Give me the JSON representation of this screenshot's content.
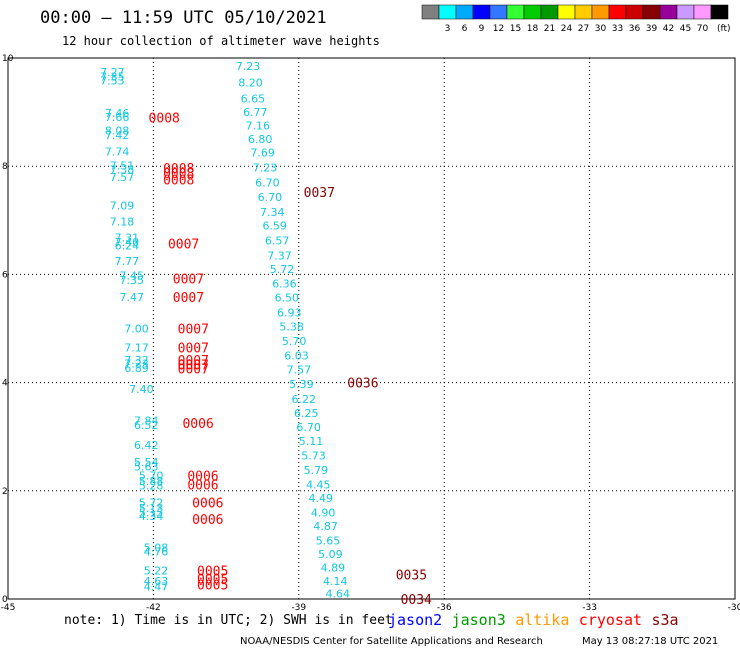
{
  "header": {
    "title": "00:00 – 11:59 UTC 05/10/2021",
    "subtitle": "12 hour collection of altimeter wave heights"
  },
  "colorbar": {
    "colors": [
      "#808080",
      "#00ffff",
      "#00aaff",
      "#0000ff",
      "#3377ff",
      "#33ff33",
      "#00cc00",
      "#009900",
      "#ffff00",
      "#ffcc00",
      "#ff9900",
      "#ff0000",
      "#cc0000",
      "#880000",
      "#990099",
      "#cc99ff",
      "#ff99ff",
      "#000000"
    ],
    "labels": [
      "3",
      "6",
      "9",
      "12",
      "15",
      "18",
      "21",
      "24",
      "27",
      "30",
      "33",
      "36",
      "39",
      "42",
      "45",
      "70"
    ],
    "unit": "(ft)"
  },
  "footer": {
    "note": "note: 1) Time is in UTC; 2) SWH is in feet",
    "satellites": [
      {
        "name": "jason2",
        "color": "#0000ff"
      },
      {
        "name": "jason3",
        "color": "#009900"
      },
      {
        "name": "altika",
        "color": "#ff9900"
      },
      {
        "name": "cryosat",
        "color": "#ff0000"
      },
      {
        "name": "s3a",
        "color": "#880000"
      }
    ],
    "credit": "NOAA/NESDIS Center for Satellite Applications and Research",
    "timestamp": "May 13 08:27:18 UTC 2021"
  },
  "chart_data": {
    "type": "scatter",
    "xlim": [
      -45,
      -30
    ],
    "ylim": [
      0,
      10
    ],
    "xticks": [
      "-45",
      "-42",
      "-39",
      "-36",
      "-33",
      "-30"
    ],
    "yticks": [
      "0",
      "2",
      "4",
      "6",
      "8",
      "10"
    ],
    "grid": true,
    "points": [
      {
        "x": -43.1,
        "y": 9.74,
        "label": "7.27",
        "color": "#11c8e0"
      },
      {
        "x": -43.1,
        "y": 9.66,
        "label": "7.35",
        "color": "#11c8e0"
      },
      {
        "x": -43.1,
        "y": 9.58,
        "label": "7.53",
        "color": "#11c8e0"
      },
      {
        "x": -43.0,
        "y": 8.98,
        "label": "7.46",
        "color": "#11c8e0"
      },
      {
        "x": -43.0,
        "y": 8.91,
        "label": "7.66",
        "color": "#11c8e0"
      },
      {
        "x": -43.0,
        "y": 8.66,
        "label": "8.08",
        "color": "#11c8e0"
      },
      {
        "x": -43.0,
        "y": 8.58,
        "label": "7.42",
        "color": "#11c8e0"
      },
      {
        "x": -43.0,
        "y": 8.27,
        "label": "7.74",
        "color": "#11c8e0"
      },
      {
        "x": -42.9,
        "y": 8.01,
        "label": "7.51",
        "color": "#11c8e0"
      },
      {
        "x": -42.9,
        "y": 7.94,
        "label": "7.38",
        "color": "#11c8e0"
      },
      {
        "x": -42.9,
        "y": 7.8,
        "label": "7.57",
        "color": "#11c8e0"
      },
      {
        "x": -42.9,
        "y": 7.27,
        "label": "7.09",
        "color": "#11c8e0"
      },
      {
        "x": -42.9,
        "y": 6.98,
        "label": "7.18",
        "color": "#11c8e0"
      },
      {
        "x": -42.8,
        "y": 6.68,
        "label": "7.31",
        "color": "#11c8e0"
      },
      {
        "x": -42.8,
        "y": 6.6,
        "label": "7.40",
        "color": "#11c8e0"
      },
      {
        "x": -42.8,
        "y": 6.53,
        "label": "6.24",
        "color": "#11c8e0"
      },
      {
        "x": -42.8,
        "y": 6.25,
        "label": "7.77",
        "color": "#11c8e0"
      },
      {
        "x": -42.7,
        "y": 5.98,
        "label": "7.45",
        "color": "#11c8e0"
      },
      {
        "x": -42.7,
        "y": 5.9,
        "label": "7.35",
        "color": "#11c8e0"
      },
      {
        "x": -42.7,
        "y": 5.58,
        "label": "7.47",
        "color": "#11c8e0"
      },
      {
        "x": -42.6,
        "y": 5.0,
        "label": "7.00",
        "color": "#11c8e0"
      },
      {
        "x": -42.6,
        "y": 4.65,
        "label": "7.17",
        "color": "#11c8e0"
      },
      {
        "x": -42.6,
        "y": 4.42,
        "label": "7.32",
        "color": "#11c8e0"
      },
      {
        "x": -42.6,
        "y": 4.35,
        "label": "7.23",
        "color": "#11c8e0"
      },
      {
        "x": -42.6,
        "y": 4.27,
        "label": "6.89",
        "color": "#11c8e0"
      },
      {
        "x": -42.5,
        "y": 3.88,
        "label": "7.40",
        "color": "#11c8e0"
      },
      {
        "x": -42.4,
        "y": 3.3,
        "label": "7.84",
        "color": "#11c8e0"
      },
      {
        "x": -42.4,
        "y": 3.22,
        "label": "6.52",
        "color": "#11c8e0"
      },
      {
        "x": -42.4,
        "y": 2.85,
        "label": "6.42",
        "color": "#11c8e0"
      },
      {
        "x": -42.4,
        "y": 2.53,
        "label": "5.54",
        "color": "#11c8e0"
      },
      {
        "x": -42.4,
        "y": 2.45,
        "label": "5.63",
        "color": "#11c8e0"
      },
      {
        "x": -42.3,
        "y": 2.28,
        "label": "5.70",
        "color": "#11c8e0"
      },
      {
        "x": -42.3,
        "y": 2.18,
        "label": "5.88",
        "color": "#11c8e0"
      },
      {
        "x": -42.3,
        "y": 2.1,
        "label": "5.28",
        "color": "#11c8e0"
      },
      {
        "x": -42.3,
        "y": 1.78,
        "label": "5.72",
        "color": "#11c8e0"
      },
      {
        "x": -42.3,
        "y": 1.68,
        "label": "5.13",
        "color": "#11c8e0"
      },
      {
        "x": -42.3,
        "y": 1.6,
        "label": "5.15",
        "color": "#11c8e0"
      },
      {
        "x": -42.3,
        "y": 1.53,
        "label": "4.34",
        "color": "#11c8e0"
      },
      {
        "x": -42.2,
        "y": 0.95,
        "label": "5.08",
        "color": "#11c8e0"
      },
      {
        "x": -42.2,
        "y": 0.88,
        "label": "4.76",
        "color": "#11c8e0"
      },
      {
        "x": -42.2,
        "y": 0.53,
        "label": "5.22",
        "color": "#11c8e0"
      },
      {
        "x": -42.2,
        "y": 0.33,
        "label": "4.63",
        "color": "#11c8e0"
      },
      {
        "x": -42.2,
        "y": 0.23,
        "label": "4.47",
        "color": "#11c8e0"
      },
      {
        "x": -40.3,
        "y": 9.85,
        "label": "7.23",
        "color": "#11c8e0"
      },
      {
        "x": -40.25,
        "y": 9.55,
        "label": "8.20",
        "color": "#11c8e0"
      },
      {
        "x": -40.2,
        "y": 9.25,
        "label": "6.65",
        "color": "#11c8e0"
      },
      {
        "x": -40.15,
        "y": 9.0,
        "label": "6.77",
        "color": "#11c8e0"
      },
      {
        "x": -40.1,
        "y": 8.75,
        "label": "7.16",
        "color": "#11c8e0"
      },
      {
        "x": -40.05,
        "y": 8.5,
        "label": "6.80",
        "color": "#11c8e0"
      },
      {
        "x": -40.0,
        "y": 8.25,
        "label": "7.69",
        "color": "#11c8e0"
      },
      {
        "x": -39.95,
        "y": 7.98,
        "label": "7.23",
        "color": "#11c8e0"
      },
      {
        "x": -39.9,
        "y": 7.7,
        "label": "6.70",
        "color": "#11c8e0"
      },
      {
        "x": -39.85,
        "y": 7.43,
        "label": "6.70",
        "color": "#11c8e0"
      },
      {
        "x": -39.8,
        "y": 7.15,
        "label": "7.34",
        "color": "#11c8e0"
      },
      {
        "x": -39.75,
        "y": 6.9,
        "label": "6.59",
        "color": "#11c8e0"
      },
      {
        "x": -39.7,
        "y": 6.63,
        "label": "6.57",
        "color": "#11c8e0"
      },
      {
        "x": -39.65,
        "y": 6.35,
        "label": "7.37",
        "color": "#11c8e0"
      },
      {
        "x": -39.6,
        "y": 6.1,
        "label": "5.72",
        "color": "#11c8e0"
      },
      {
        "x": -39.55,
        "y": 5.83,
        "label": "6.36",
        "color": "#11c8e0"
      },
      {
        "x": -39.5,
        "y": 5.57,
        "label": "6.50",
        "color": "#11c8e0"
      },
      {
        "x": -39.45,
        "y": 5.3,
        "label": "6.93",
        "color": "#11c8e0"
      },
      {
        "x": -39.4,
        "y": 5.04,
        "label": "5.38",
        "color": "#11c8e0"
      },
      {
        "x": -39.35,
        "y": 4.77,
        "label": "5.70",
        "color": "#11c8e0"
      },
      {
        "x": -39.3,
        "y": 4.5,
        "label": "6.03",
        "color": "#11c8e0"
      },
      {
        "x": -39.25,
        "y": 4.24,
        "label": "7.57",
        "color": "#11c8e0"
      },
      {
        "x": -39.2,
        "y": 3.97,
        "label": "5.39",
        "color": "#11c8e0"
      },
      {
        "x": -39.15,
        "y": 3.7,
        "label": "6.22",
        "color": "#11c8e0"
      },
      {
        "x": -39.1,
        "y": 3.44,
        "label": "6.25",
        "color": "#11c8e0"
      },
      {
        "x": -39.05,
        "y": 3.18,
        "label": "6.70",
        "color": "#11c8e0"
      },
      {
        "x": -39.0,
        "y": 2.92,
        "label": "5.11",
        "color": "#11c8e0"
      },
      {
        "x": -38.95,
        "y": 2.65,
        "label": "5.73",
        "color": "#11c8e0"
      },
      {
        "x": -38.9,
        "y": 2.38,
        "label": "5.79",
        "color": "#11c8e0"
      },
      {
        "x": -38.85,
        "y": 2.12,
        "label": "4.45",
        "color": "#11c8e0"
      },
      {
        "x": -38.8,
        "y": 1.87,
        "label": "4.49",
        "color": "#11c8e0"
      },
      {
        "x": -38.75,
        "y": 1.6,
        "label": "4.90",
        "color": "#11c8e0"
      },
      {
        "x": -38.7,
        "y": 1.35,
        "label": "4.87",
        "color": "#11c8e0"
      },
      {
        "x": -38.65,
        "y": 1.08,
        "label": "5.65",
        "color": "#11c8e0"
      },
      {
        "x": -38.6,
        "y": 0.83,
        "label": "5.09",
        "color": "#11c8e0"
      },
      {
        "x": -38.55,
        "y": 0.58,
        "label": "4.89",
        "color": "#11c8e0"
      },
      {
        "x": -38.5,
        "y": 0.33,
        "label": "4.14",
        "color": "#11c8e0"
      },
      {
        "x": -38.45,
        "y": 0.1,
        "label": "4.64",
        "color": "#11c8e0"
      }
    ],
    "time_labels": [
      {
        "x": -42.1,
        "y": 8.9,
        "label": "0008",
        "color": "#ff0000"
      },
      {
        "x": -41.8,
        "y": 7.97,
        "label": "0008",
        "color": "#ff0000"
      },
      {
        "x": -41.8,
        "y": 7.87,
        "label": "0008",
        "color": "#ff0000"
      },
      {
        "x": -41.8,
        "y": 7.75,
        "label": "0008",
        "color": "#ff0000"
      },
      {
        "x": -41.7,
        "y": 6.57,
        "label": "0007",
        "color": "#ff0000"
      },
      {
        "x": -41.6,
        "y": 5.92,
        "label": "0007",
        "color": "#ff0000"
      },
      {
        "x": -41.6,
        "y": 5.58,
        "label": "0007",
        "color": "#ff0000"
      },
      {
        "x": -41.5,
        "y": 5.0,
        "label": "0007",
        "color": "#ff0000"
      },
      {
        "x": -41.5,
        "y": 4.65,
        "label": "0007",
        "color": "#ff0000"
      },
      {
        "x": -41.5,
        "y": 4.42,
        "label": "0007",
        "color": "#ff0000"
      },
      {
        "x": -41.5,
        "y": 4.33,
        "label": "0007",
        "color": "#ff0000"
      },
      {
        "x": -41.5,
        "y": 4.26,
        "label": "0007",
        "color": "#ff0000"
      },
      {
        "x": -41.4,
        "y": 3.25,
        "label": "0006",
        "color": "#ff0000"
      },
      {
        "x": -41.3,
        "y": 2.28,
        "label": "0006",
        "color": "#ff0000"
      },
      {
        "x": -41.3,
        "y": 2.12,
        "label": "0006",
        "color": "#ff0000"
      },
      {
        "x": -41.2,
        "y": 1.78,
        "label": "0006",
        "color": "#ff0000"
      },
      {
        "x": -41.2,
        "y": 1.48,
        "label": "0006",
        "color": "#ff0000"
      },
      {
        "x": -41.1,
        "y": 0.53,
        "label": "0005",
        "color": "#ff0000"
      },
      {
        "x": -41.1,
        "y": 0.38,
        "label": "0005",
        "color": "#ff0000"
      },
      {
        "x": -41.1,
        "y": 0.27,
        "label": "0005",
        "color": "#ff0000"
      },
      {
        "x": -38.9,
        "y": 7.52,
        "label": "0037",
        "color": "#880000"
      },
      {
        "x": -38.0,
        "y": 4.0,
        "label": "0036",
        "color": "#880000"
      },
      {
        "x": -37.0,
        "y": 0.45,
        "label": "0035",
        "color": "#880000"
      },
      {
        "x": -36.9,
        "y": 0.0,
        "label": "0034",
        "color": "#880000"
      }
    ]
  }
}
